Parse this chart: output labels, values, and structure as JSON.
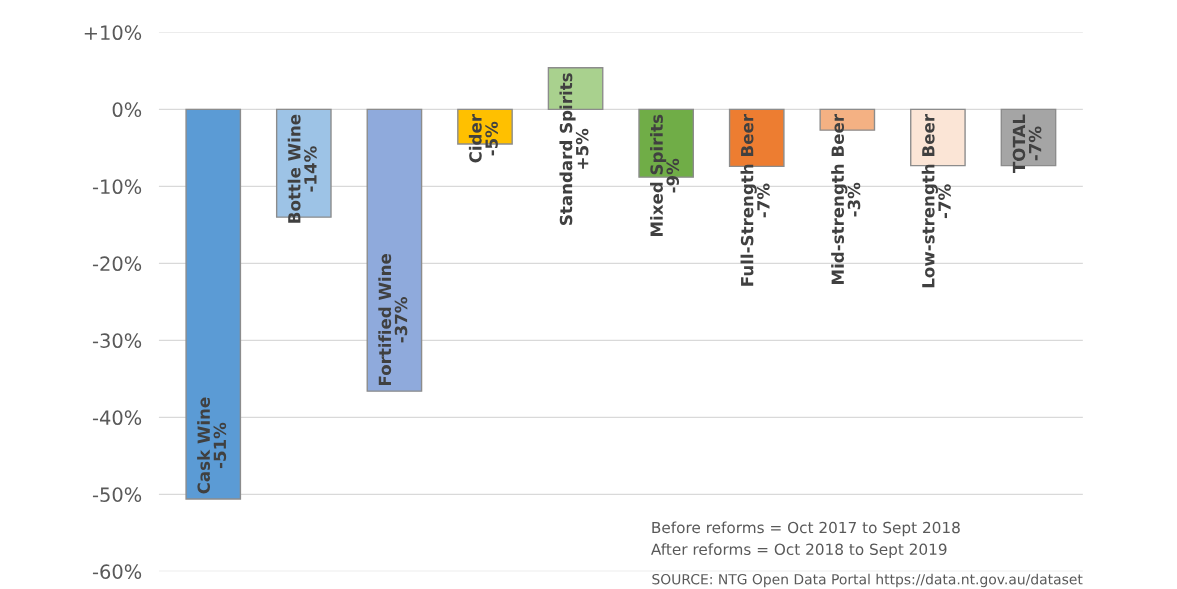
{
  "chart_data": {
    "type": "bar",
    "categories": [
      "Cask Wine",
      "Bottle Wine",
      "Fortified Wine",
      "Cider",
      "Standard Spirits",
      "Mixed Spirits",
      "Full-Strength Beer",
      "Mid-strength Beer",
      "Low-strength Beer",
      "TOTAL"
    ],
    "values": [
      -50.6,
      -14.0,
      -36.6,
      -4.5,
      5.4,
      -8.8,
      -7.4,
      -2.7,
      -7.3,
      -7.3
    ],
    "value_labels": [
      "-51%",
      "-14%",
      "-37%",
      "-5%",
      "+5%",
      "-9%",
      "-7%",
      "-3%",
      "-7%",
      "-7%"
    ],
    "colors": [
      "#5b9bd5",
      "#9dc3e6",
      "#8faadc",
      "#ffc000",
      "#a9d18e",
      "#70ad47",
      "#ed7d31",
      "#f4b183",
      "#fbe5d6",
      "#a5a5a5"
    ],
    "ylim": [
      -60,
      10
    ],
    "yticks": [
      {
        "value": 10,
        "label": "+10%"
      },
      {
        "value": 0,
        "label": "0%"
      },
      {
        "value": -10,
        "label": "-10%"
      },
      {
        "value": -20,
        "label": "-20%"
      },
      {
        "value": -30,
        "label": "-30%"
      },
      {
        "value": -40,
        "label": "-40%"
      },
      {
        "value": -50,
        "label": "-50%"
      },
      {
        "value": -60,
        "label": "-60%"
      }
    ],
    "grid": "y",
    "tick_labels": "y",
    "annotations": [
      "Before reforms = Oct 2017 to Sept 2018",
      "After reforms = Oct 2018 to Sept 2019",
      "SOURCE: NTG Open Data Portal https://data.nt.gov.au/dataset"
    ]
  }
}
